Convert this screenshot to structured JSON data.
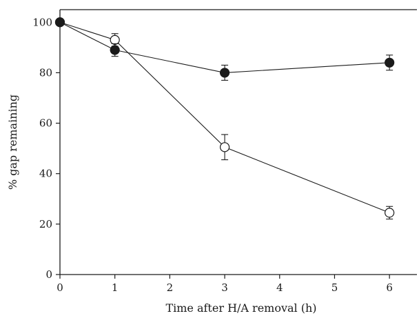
{
  "chart_data": {
    "type": "line",
    "title": "",
    "xlabel": "Time after H/A removal (h)",
    "ylabel": "% gap remaining",
    "xlim": [
      0,
      6.5
    ],
    "ylim": [
      0,
      105
    ],
    "xticks": [
      0,
      1,
      2,
      3,
      4,
      5,
      6
    ],
    "yticks": [
      0,
      20,
      40,
      60,
      80,
      100
    ],
    "grid": false,
    "legend": "none",
    "series": [
      {
        "marker": "filled-circle",
        "color": "#1a1a1a",
        "x": [
          0,
          1,
          3,
          6
        ],
        "y": [
          100,
          89,
          80,
          84
        ],
        "err": [
          0,
          2.5,
          3,
          3
        ]
      },
      {
        "marker": "open-circle",
        "color": "#1a1a1a",
        "x": [
          0,
          1,
          3,
          6
        ],
        "y": [
          100,
          93,
          50.5,
          24.5
        ],
        "err": [
          0,
          2.5,
          5,
          2.5
        ]
      }
    ]
  }
}
